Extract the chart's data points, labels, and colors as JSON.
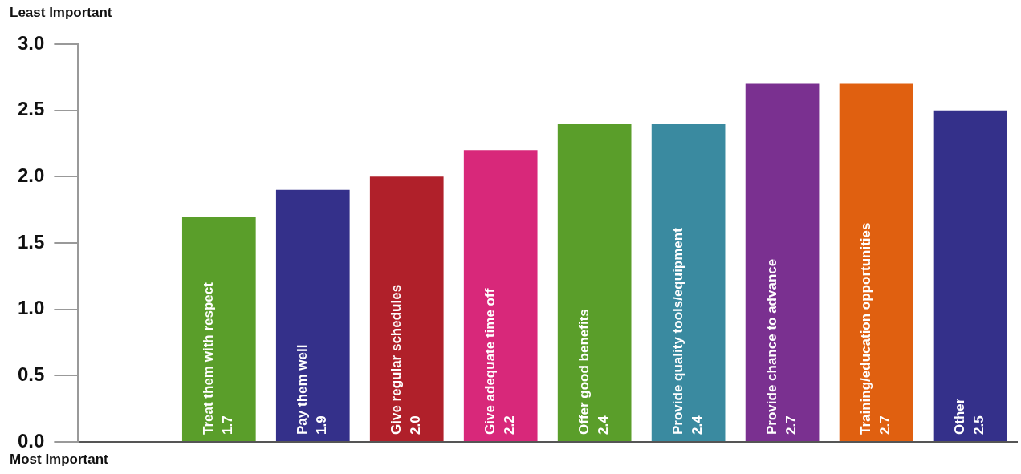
{
  "chart_data": {
    "type": "bar",
    "categories": [
      null,
      "Treat them with respect",
      "Pay them well",
      "Give regular schedules",
      "Give adequate time off",
      "Offer good benefits",
      "Provide quality tools/equipment",
      "Provide chance to advance",
      "Training/education opportunities",
      "Other"
    ],
    "values": [
      null,
      1.7,
      1.9,
      2.0,
      2.2,
      2.4,
      2.4,
      2.7,
      2.7,
      2.5
    ],
    "colors": [
      "#000000",
      "#5a9e2a",
      "#34308a",
      "#b0202a",
      "#d8287a",
      "#5a9e2a",
      "#3a8aa0",
      "#7a3090",
      "#e06010",
      "#34308a"
    ],
    "ylim": [
      0,
      3
    ],
    "yticks": [
      {
        "value": 0,
        "label": "0.0"
      },
      {
        "value": 0.5,
        "label": "0.5"
      },
      {
        "value": 1,
        "label": "1.0"
      },
      {
        "value": 1.5,
        "label": "1.5"
      },
      {
        "value": 2,
        "label": "2.0"
      },
      {
        "value": 2.5,
        "label": "2.5"
      },
      {
        "value": 3,
        "label": "3.0"
      }
    ],
    "annotations": [
      "Least Important",
      "Most Important"
    ],
    "value_labels": [
      null,
      "1.7",
      "1.9",
      "2.0",
      "2.2",
      "2.4",
      "2.4",
      "2.7",
      "2.7",
      "2.5"
    ],
    "grid": false,
    "legend": false,
    "tick_labels": "y"
  }
}
